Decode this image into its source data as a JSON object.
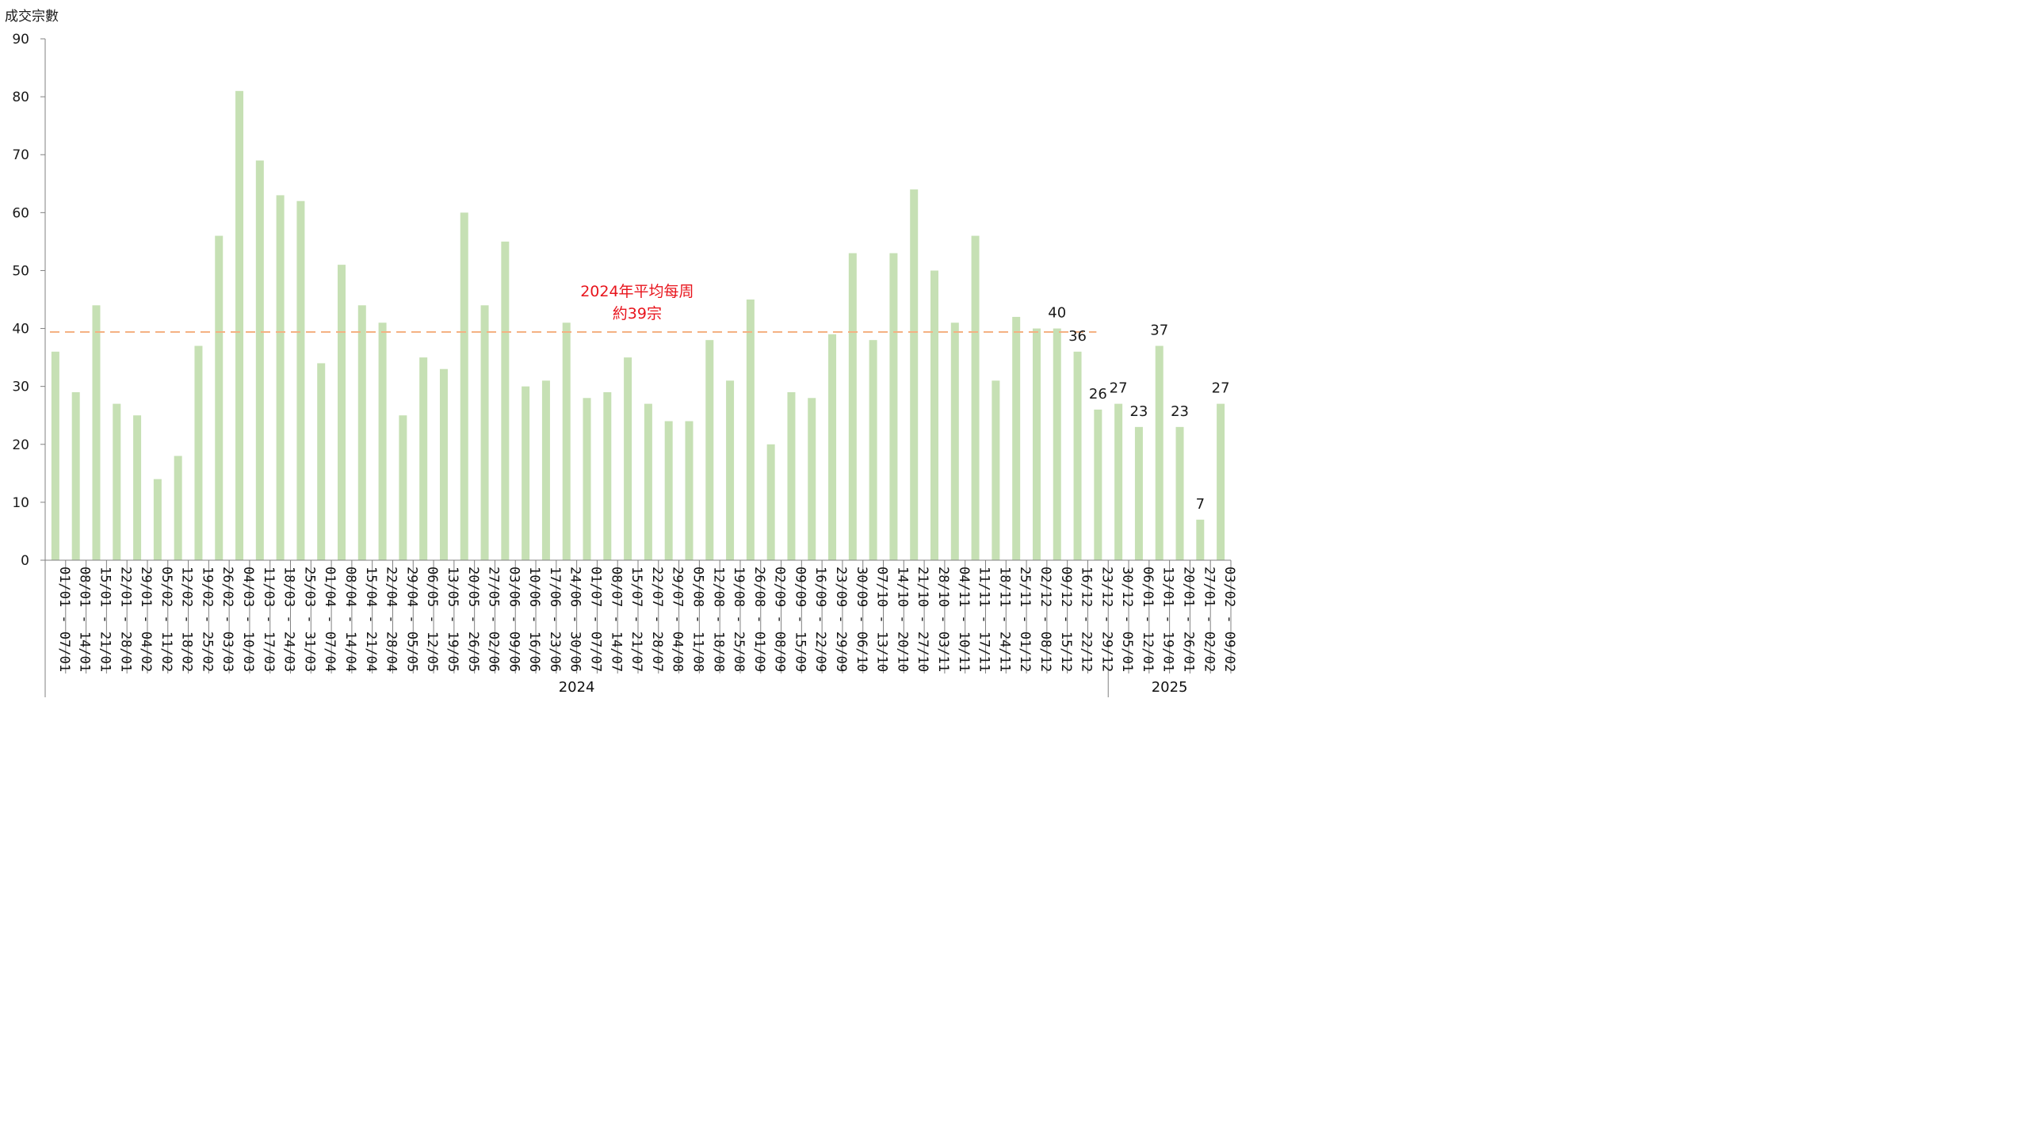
{
  "chart_data": {
    "type": "bar",
    "ylabel": "成交宗數",
    "ylim": [
      0,
      90
    ],
    "yticks": [
      0,
      10,
      20,
      30,
      40,
      50,
      60,
      70,
      80,
      90
    ],
    "grid": false,
    "bar_color": "#c6e0b4",
    "average_line": {
      "value": 39.4,
      "color": "#f4b183",
      "label_lines": [
        "2024年平均每周",
        "約39宗"
      ],
      "label_color": "#e8141c"
    },
    "categories": [
      "01/01 - 07/01",
      "08/01 - 14/01",
      "15/01 - 21/01",
      "22/01 - 28/01",
      "29/01 - 04/02",
      "05/02 - 11/02",
      "12/02 - 18/02",
      "19/02 - 25/02",
      "26/02 - 03/03",
      "04/03 - 10/03",
      "11/03 - 17/03",
      "18/03 - 24/03",
      "25/03 - 31/03",
      "01/04 - 07/04",
      "08/04 - 14/04",
      "15/04 - 21/04",
      "22/04 - 28/04",
      "29/04 - 05/05",
      "06/05 - 12/05",
      "13/05 - 19/05",
      "20/05 - 26/05",
      "27/05 - 02/06",
      "03/06 - 09/06",
      "10/06 - 16/06",
      "17/06 - 23/06",
      "24/06 - 30/06",
      "01/07 - 07/07",
      "08/07 - 14/07",
      "15/07 - 21/07",
      "22/07 - 28/07",
      "29/07 - 04/08",
      "05/08 - 11/08",
      "12/08 - 18/08",
      "19/08 - 25/08",
      "26/08 - 01/09",
      "02/09 - 08/09",
      "09/09 - 15/09",
      "16/09 - 22/09",
      "23/09 - 29/09",
      "30/09 - 06/10",
      "07/10 - 13/10",
      "14/10 - 20/10",
      "21/10 - 27/10",
      "28/10 - 03/11",
      "04/11 - 10/11",
      "11/11 - 17/11",
      "18/11 - 24/11",
      "25/11 - 01/12",
      "02/12 - 08/12",
      "09/12 - 15/12",
      "16/12 - 22/12",
      "23/12 - 29/12",
      "30/12 - 05/01",
      "06/01 - 12/01",
      "13/01 - 19/01",
      "20/01 - 26/01",
      "27/01 - 02/02",
      "03/02 - 09/02"
    ],
    "values": [
      36,
      29,
      44,
      27,
      25,
      14,
      18,
      37,
      56,
      81,
      69,
      63,
      62,
      34,
      51,
      44,
      41,
      25,
      35,
      33,
      60,
      44,
      55,
      30,
      31,
      41,
      28,
      29,
      35,
      27,
      24,
      24,
      38,
      31,
      45,
      20,
      29,
      28,
      39,
      53,
      38,
      53,
      64,
      50,
      41,
      56,
      31,
      42,
      40,
      40,
      36,
      26,
      27,
      23,
      37,
      23,
      7,
      27
    ],
    "data_labels": [
      {
        "index": 49,
        "text": "40"
      },
      {
        "index": 50,
        "text": "36"
      },
      {
        "index": 51,
        "text": "26"
      },
      {
        "index": 52,
        "text": "27"
      },
      {
        "index": 53,
        "text": "23"
      },
      {
        "index": 54,
        "text": "37"
      },
      {
        "index": 55,
        "text": "23"
      },
      {
        "index": 56,
        "text": "7"
      },
      {
        "index": 57,
        "text": "27"
      }
    ],
    "year_groups": [
      {
        "label": "2024",
        "start": 0,
        "end": 51
      },
      {
        "label": "2025",
        "start": 52,
        "end": 57
      }
    ]
  }
}
